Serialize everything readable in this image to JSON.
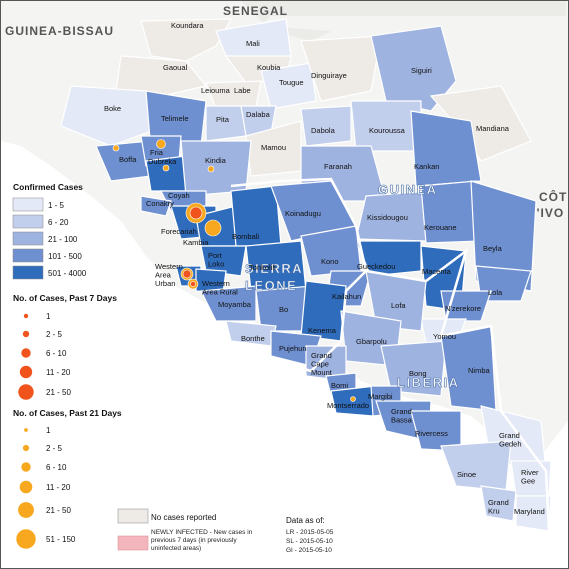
{
  "countries": {
    "guinea_bissau": "GUINEA-BISSAU",
    "senegal": "SENEGAL",
    "mali_edge": "Mali",
    "guinea": "GUINEA",
    "sierra_leone_1": "SIERRA",
    "sierra_leone_2": "LEONE",
    "liberia": "LIBERIA",
    "cote_1": "CÔT",
    "cote_2": "D'IVO"
  },
  "districts": [
    {
      "id": "koundara",
      "name": "Koundara"
    },
    {
      "id": "mali",
      "name": "Mali"
    },
    {
      "id": "gaoual",
      "name": "Gaoual"
    },
    {
      "id": "koubia",
      "name": "Koubia"
    },
    {
      "id": "siguiri",
      "name": "Siguiri"
    },
    {
      "id": "dinguiraye",
      "name": "Dinguiraye"
    },
    {
      "id": "leiouma",
      "name": "Leiouma"
    },
    {
      "id": "labe",
      "name": "Labe"
    },
    {
      "id": "tougue",
      "name": "Tougue"
    },
    {
      "id": "boke",
      "name": "Boke"
    },
    {
      "id": "telimele",
      "name": "Telimele"
    },
    {
      "id": "pita",
      "name": "Pita"
    },
    {
      "id": "dalaba",
      "name": "Dalaba"
    },
    {
      "id": "mandiana",
      "name": "Mandiana"
    },
    {
      "id": "dabola",
      "name": "Dabola"
    },
    {
      "id": "kouroussa",
      "name": "Kouroussa"
    },
    {
      "id": "fria",
      "name": "Fria"
    },
    {
      "id": "mamou",
      "name": "Mamou"
    },
    {
      "id": "dubreka",
      "name": "Dubreka"
    },
    {
      "id": "boffa",
      "name": "Boffa"
    },
    {
      "id": "kindia",
      "name": "Kindia"
    },
    {
      "id": "faranah",
      "name": "Faranah"
    },
    {
      "id": "kankan",
      "name": "Kankan"
    },
    {
      "id": "coyah",
      "name": "Coyah"
    },
    {
      "id": "conakry",
      "name": "Conakry"
    },
    {
      "id": "koinadugu",
      "name": "Koinadugu"
    },
    {
      "id": "forecariah",
      "name": "Forecariah"
    },
    {
      "id": "kissidougou",
      "name": "Kissidougou"
    },
    {
      "id": "kambia",
      "name": "Kambia"
    },
    {
      "id": "bombali",
      "name": "Bombali"
    },
    {
      "id": "kerouane",
      "name": "Kerouane"
    },
    {
      "id": "port_loko",
      "name": "Port Loko"
    },
    {
      "id": "kono",
      "name": "Kono"
    },
    {
      "id": "beyla",
      "name": "Beyla"
    },
    {
      "id": "western_area_urban",
      "name": "Western Area Urban"
    },
    {
      "id": "tonkolili",
      "name": "Tonkolili"
    },
    {
      "id": "gueckedou",
      "name": "Gueckedou"
    },
    {
      "id": "western_area_rural",
      "name": "Western Area Rural"
    },
    {
      "id": "macenta",
      "name": "Macenta"
    },
    {
      "id": "kailahun",
      "name": "Kailahun"
    },
    {
      "id": "lola",
      "name": "Lola"
    },
    {
      "id": "moyamba",
      "name": "Moyamba"
    },
    {
      "id": "bo",
      "name": "Bo"
    },
    {
      "id": "lofa",
      "name": "Lofa"
    },
    {
      "id": "nzerekore",
      "name": "N'zerekore"
    },
    {
      "id": "kenema",
      "name": "Kenema"
    },
    {
      "id": "bonthe",
      "name": "Bonthe"
    },
    {
      "id": "yomou",
      "name": "Yomou"
    },
    {
      "id": "pujehun",
      "name": "Pujehun"
    },
    {
      "id": "gbarpolu",
      "name": "Gbarpolu"
    },
    {
      "id": "grand_cape_mount",
      "name": "Grand Cape Mount"
    },
    {
      "id": "bong",
      "name": "Bong"
    },
    {
      "id": "nimba",
      "name": "Nimba"
    },
    {
      "id": "bomi",
      "name": "Bomi"
    },
    {
      "id": "margibi",
      "name": "Margibi"
    },
    {
      "id": "montserrado",
      "name": "Montserrado"
    },
    {
      "id": "grand_bassa",
      "name": "Grand Bassa"
    },
    {
      "id": "rivercess",
      "name": "Rivercess"
    },
    {
      "id": "grand_gedeh",
      "name": "Grand Gedeh"
    },
    {
      "id": "sinoe",
      "name": "Sinoe"
    },
    {
      "id": "river_gee",
      "name": "River Gee"
    },
    {
      "id": "grand_kru",
      "name": "Grand Kru"
    },
    {
      "id": "maryland",
      "name": "Maryland"
    }
  ],
  "legend": {
    "confirmed": {
      "title": "Confirmed Cases",
      "classes": [
        {
          "label": "1 - 5",
          "color": "#e3e9f6"
        },
        {
          "label": "6 - 20",
          "color": "#c2cfec"
        },
        {
          "label": "21 - 100",
          "color": "#9fb3e0"
        },
        {
          "label": "101 - 500",
          "color": "#6f90d0"
        },
        {
          "label": "501 - 4000",
          "color": "#2f6cbc"
        }
      ]
    },
    "past7": {
      "title": "No. of Cases, Past 7 Days",
      "color": "#f0541c",
      "classes": [
        "1",
        "2 - 5",
        "6 - 10",
        "11 - 20",
        "21 - 50"
      ]
    },
    "past21": {
      "title": "No. of Cases, Past 21 Days",
      "color": "#f7a81e",
      "classes": [
        "1",
        "2 - 5",
        "6 - 10",
        "11 - 20",
        "21 - 50",
        "51 - 150"
      ]
    },
    "no_cases": {
      "label": "No cases reported",
      "color": "#eeeae6"
    },
    "newly_infected": {
      "line1": "NEWLY INFECTED - New cases in",
      "line2": "previous 7 days (in previously",
      "line3": "uninfected areas)",
      "color": "#f4b6bd"
    },
    "data_as_of": {
      "title": "Data as of:",
      "lr": "LR - 2015-05-05",
      "sl": "SL - 2015-05-10",
      "gi": "GI - 2015-05-10"
    }
  },
  "colors": {
    "sea": "#ffffff",
    "land_other": "#f4f4f2",
    "no_cases": "#eeeae6",
    "c1": "#e3e9f6",
    "c2": "#c2cfec",
    "c3": "#9fb3e0",
    "c4": "#6f90d0",
    "c5": "#2f6cbc",
    "border": "#ffffff",
    "dot7": "#f0541c",
    "dot21": "#f7a81e"
  }
}
